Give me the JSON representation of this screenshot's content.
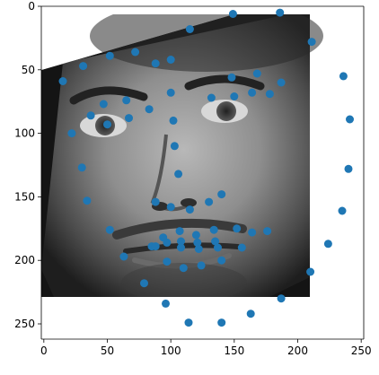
{
  "chart_data": {
    "type": "scatter",
    "title": "",
    "xlabel": "",
    "ylabel": "",
    "xlim": [
      -2,
      252
    ],
    "ylim": [
      262,
      0
    ],
    "xticks": [
      0,
      50,
      100,
      150,
      200,
      250
    ],
    "yticks": [
      0,
      50,
      100,
      150,
      200,
      250
    ],
    "grid": false,
    "marker_color": "#1f77b4",
    "background_image": {
      "description": "grayscale photograph of a man's face, rotated slightly",
      "extent_x": [
        0,
        224
      ],
      "extent_y": [
        224,
        0
      ]
    },
    "series": [
      {
        "points": [
          [
            15,
            59
          ],
          [
            22,
            100
          ],
          [
            30,
            127
          ],
          [
            34,
            153
          ],
          [
            52,
            176
          ],
          [
            63,
            197
          ],
          [
            79,
            218
          ],
          [
            96,
            234
          ],
          [
            114,
            249
          ],
          [
            140,
            249
          ],
          [
            163,
            242
          ],
          [
            187,
            230
          ],
          [
            210,
            209
          ],
          [
            224,
            187
          ],
          [
            235,
            161
          ],
          [
            240,
            128
          ],
          [
            241,
            89
          ],
          [
            236,
            55
          ],
          [
            31,
            47
          ],
          [
            52,
            39
          ],
          [
            72,
            36
          ],
          [
            88,
            45
          ],
          [
            100,
            42
          ],
          [
            115,
            18
          ],
          [
            149,
            6
          ],
          [
            186,
            5
          ],
          [
            211,
            28
          ],
          [
            148,
            56
          ],
          [
            168,
            53
          ],
          [
            187,
            60
          ],
          [
            37,
            86
          ],
          [
            47,
            77
          ],
          [
            50,
            93
          ],
          [
            67,
            88
          ],
          [
            65,
            74
          ],
          [
            83,
            81
          ],
          [
            100,
            68
          ],
          [
            102,
            90
          ],
          [
            103,
            110
          ],
          [
            106,
            132
          ],
          [
            132,
            72
          ],
          [
            150,
            71
          ],
          [
            164,
            68
          ],
          [
            178,
            69
          ],
          [
            88,
            154
          ],
          [
            100,
            158
          ],
          [
            115,
            160
          ],
          [
            130,
            154
          ],
          [
            140,
            148
          ],
          [
            85,
            189
          ],
          [
            94,
            182
          ],
          [
            107,
            177
          ],
          [
            120,
            180
          ],
          [
            134,
            176
          ],
          [
            152,
            175
          ],
          [
            164,
            178
          ],
          [
            176,
            177
          ],
          [
            156,
            190
          ],
          [
            140,
            200
          ],
          [
            124,
            204
          ],
          [
            110,
            206
          ],
          [
            97,
            201
          ],
          [
            88,
            189
          ],
          [
            97,
            186
          ],
          [
            108,
            185
          ],
          [
            121,
            186
          ],
          [
            135,
            185
          ],
          [
            108,
            190
          ],
          [
            122,
            191
          ],
          [
            137,
            190
          ]
        ]
      }
    ]
  }
}
